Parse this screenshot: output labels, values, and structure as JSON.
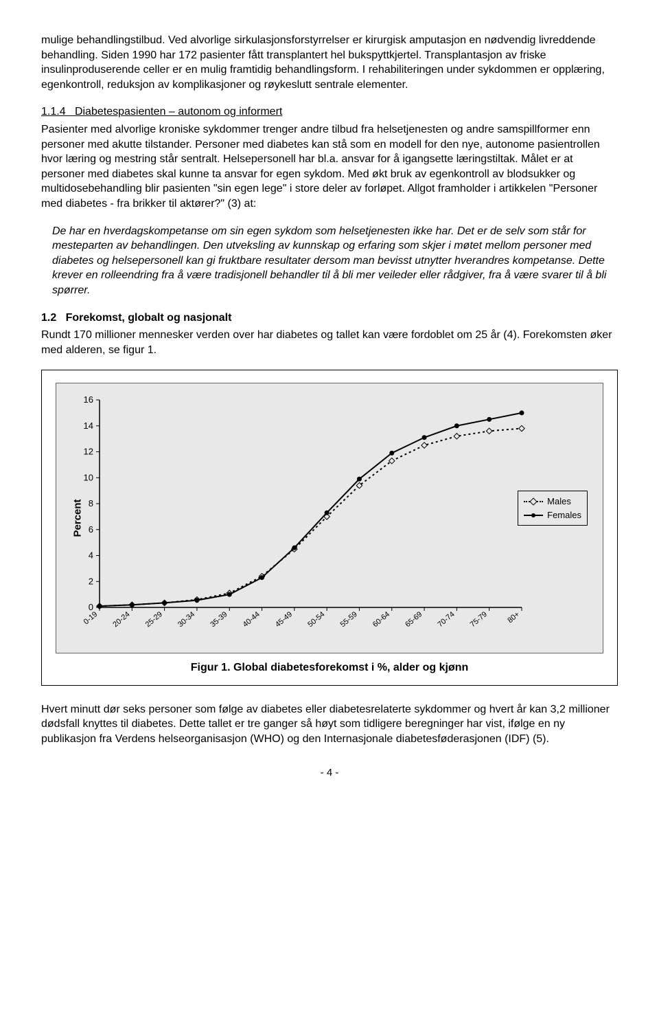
{
  "para_intro": "mulige behandlingstilbud. Ved alvorlige sirkulasjonsforstyrrelser er kirurgisk amputasjon en nødvendig livreddende behandling. Siden 1990 har 172 pasienter fått transplantert hel bukspyttkjertel. Transplantasjon av friske insulinproduserende celler er en mulig framtidig behandlingsform. I rehabiliteringen under sykdommen er opplæring, egenkontroll, reduksjon av komplikasjoner og røykeslutt sentrale elementer.",
  "section_114_num": "1.1.4",
  "section_114_title": "Diabetespasienten – autonom og informert",
  "para_114": "Pasienter med alvorlige kroniske sykdommer trenger andre tilbud fra helsetjenesten og andre samspillformer enn personer med akutte tilstander. Personer med diabetes kan stå som en modell for den nye, autonome pasientrollen hvor læring og mestring står sentralt. Helsepersonell har bl.a. ansvar for å igangsette læringstiltak. Målet er at personer med diabetes skal kunne ta ansvar for egen sykdom. Med økt bruk av egenkontroll av blodsukker og multidosebehandling blir pasienten \"sin egen lege\" i store deler av forløpet. Allgot framholder i artikkelen \"Personer med diabetes - fra brikker til aktører?\" (3) at:",
  "quote_114": "De har en hverdagskompetanse om sin egen sykdom som helsetjenesten ikke har. Det er de selv som står for mesteparten av behandlingen. Den utveksling av kunnskap og erfaring som skjer i møtet mellom personer med diabetes og helsepersonell kan gi fruktbare resultater dersom man bevisst utnytter hverandres kompetanse. Dette krever en rolleendring fra å være tradisjonell behandler til å bli mer veileder eller rådgiver, fra å være svarer til å bli spørrer.",
  "section_12_num": "1.2",
  "section_12_title": "Forekomst, globalt og nasjonalt",
  "para_12": "Rundt 170 millioner mennesker verden over har diabetes og tallet kan være fordoblet om 25 år (4). Forekomsten øker med alderen, se figur 1.",
  "chart": {
    "type": "line",
    "ylabel": "Percent",
    "ylim": [
      0,
      16
    ],
    "ytick_step": 2,
    "categories": [
      "0-19",
      "20-24",
      "25-29",
      "30-34",
      "35-39",
      "40-44",
      "45-49",
      "50-54",
      "55-59",
      "60-64",
      "65-69",
      "70-74",
      "75-79",
      "80+"
    ],
    "series": [
      {
        "name": "Males",
        "style": "dashed",
        "marker": "diamond",
        "values": [
          0.1,
          0.2,
          0.35,
          0.6,
          1.1,
          2.4,
          4.5,
          7.0,
          9.4,
          11.3,
          12.5,
          13.2,
          13.6,
          13.8
        ]
      },
      {
        "name": "Females",
        "style": "solid",
        "marker": "dot",
        "values": [
          0.1,
          0.2,
          0.35,
          0.55,
          1.0,
          2.3,
          4.6,
          7.3,
          9.9,
          11.9,
          13.1,
          14.0,
          14.5,
          15.0
        ]
      }
    ],
    "background_color": "#e8e8e8",
    "axis_color": "#000000",
    "label_fontsize": 12
  },
  "figure_caption": "Figur 1. Global diabetesforekomst i %, alder og kjønn",
  "para_end": "Hvert minutt dør seks personer som følge av diabetes eller diabetesrelaterte sykdommer og hvert år kan 3,2 millioner dødsfall knyttes til diabetes. Dette tallet er tre ganger så høyt som tidligere beregninger har vist, ifølge en ny publikasjon fra Verdens helseorganisasjon (WHO) og den Internasjonale diabetesføderasjonen (IDF) (5).",
  "page_number": "- 4 -"
}
